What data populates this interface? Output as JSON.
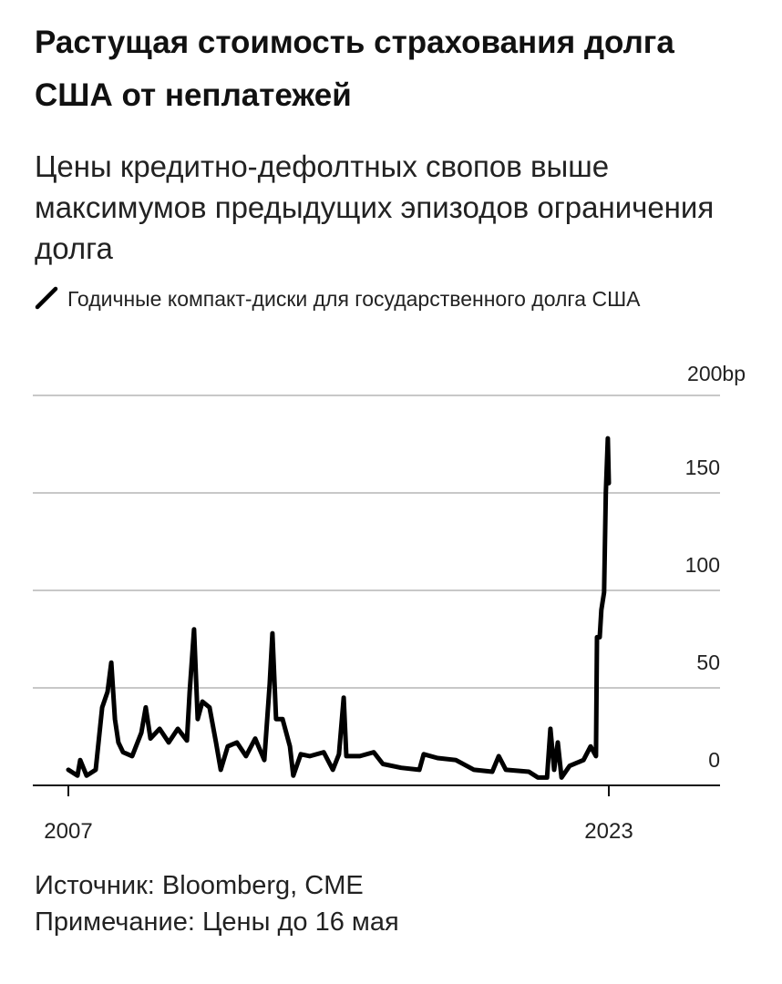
{
  "title": "Растущая стоимость страхования долга США от неплатежей",
  "subtitle": "Цены кредитно-дефолтных свопов выше максимумов предыдущих эпизодов ограничения долга",
  "footer": {
    "source": "Источник: Bloomberg, CME",
    "note": "Примечание: Цены до 16 мая"
  },
  "chart_data": {
    "type": "line",
    "title": "Растущая стоимость страхования долга США от неплатежей",
    "xlabel": "",
    "ylabel": "bp",
    "xlim": [
      2007,
      2024.9
    ],
    "ylim": [
      0,
      200
    ],
    "x_ticks": [
      {
        "value": 2007,
        "label": "2007"
      },
      {
        "value": 2023,
        "label": "2023"
      }
    ],
    "y_ticks": [
      {
        "value": 0,
        "label": "0"
      },
      {
        "value": 50,
        "label": "50"
      },
      {
        "value": 100,
        "label": "100"
      },
      {
        "value": 150,
        "label": "150"
      },
      {
        "value": 200,
        "label": "200bp"
      }
    ],
    "grid": true,
    "legend_position": "top-left",
    "series": [
      {
        "name": "Годичные компакт-диски для государственного долга США",
        "color": "#000000",
        "x": [
          2007.0,
          2007.27,
          2007.35,
          2007.54,
          2007.81,
          2008.0,
          2008.16,
          2008.27,
          2008.38,
          2008.48,
          2008.62,
          2008.89,
          2009.16,
          2009.29,
          2009.43,
          2009.7,
          2009.97,
          2010.24,
          2010.51,
          2010.59,
          2010.72,
          2010.83,
          2010.97,
          2011.18,
          2011.37,
          2011.51,
          2011.72,
          2011.99,
          2012.26,
          2012.53,
          2012.8,
          2012.96,
          2013.04,
          2013.15,
          2013.34,
          2013.56,
          2013.66,
          2013.88,
          2014.15,
          2014.56,
          2014.83,
          2015.01,
          2015.15,
          2015.23,
          2015.63,
          2016.04,
          2016.31,
          2016.85,
          2017.39,
          2017.52,
          2017.93,
          2018.47,
          2019.01,
          2019.55,
          2019.74,
          2019.95,
          2020.63,
          2020.9,
          2021.17,
          2021.27,
          2021.38,
          2021.49,
          2021.6,
          2021.84,
          2022.25,
          2022.46,
          2022.62,
          2022.65,
          2022.73,
          2022.78,
          2022.86,
          2022.91,
          2022.97,
          2023.0
        ],
        "values": [
          8,
          5,
          13,
          5,
          8,
          40,
          48,
          63,
          34,
          22,
          17,
          15,
          27,
          40,
          24,
          29,
          22,
          29,
          23,
          48,
          80,
          34,
          43,
          40,
          22,
          8,
          20,
          22,
          15,
          24,
          13,
          52,
          78,
          34,
          34,
          20,
          5,
          16,
          15,
          17,
          8,
          16,
          45,
          15,
          15,
          17,
          11,
          9,
          8,
          16,
          14,
          13,
          8,
          7,
          15,
          8,
          7,
          4,
          4,
          29,
          8,
          22,
          4,
          10,
          13,
          20,
          15,
          76,
          76,
          90,
          99,
          150,
          178,
          155
        ]
      }
    ]
  }
}
